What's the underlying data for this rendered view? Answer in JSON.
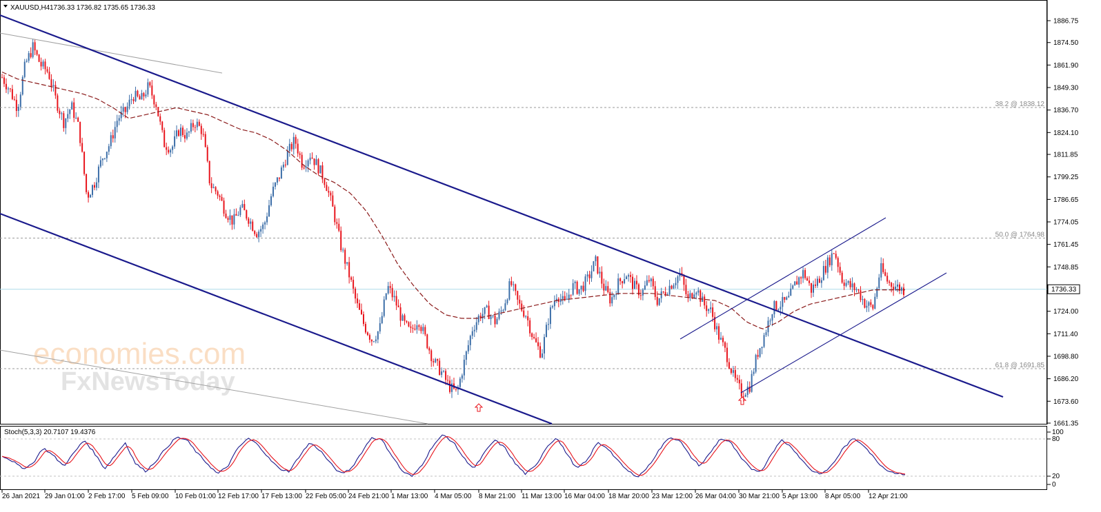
{
  "header": {
    "symbol_text": "XAUUSD,H4",
    "ohlc_text": "1736.33 1736.82 1735.65 1736.33"
  },
  "price_axis": {
    "ticks": [
      "1886.75",
      "1874.50",
      "1861.90",
      "1849.30",
      "1836.70",
      "1824.10",
      "1811.85",
      "1799.25",
      "1786.65",
      "1774.05",
      "1761.45",
      "1748.85",
      "1736.25",
      "1724.00",
      "1711.40",
      "1698.80",
      "1686.20",
      "1673.60",
      "1661.35"
    ],
    "current_price": "1736.33"
  },
  "fib_levels": [
    {
      "label": "38.2 @ 1838.12",
      "price": 1838.12
    },
    {
      "label": "50.0 @ 1764.98",
      "price": 1764.98
    },
    {
      "label": "61.8 @ 1691.85",
      "price": 1691.85
    }
  ],
  "stoch": {
    "title": "Stoch(5,3,3) 20.7107 19.4376",
    "ticks": [
      "100",
      "80",
      "20",
      "0"
    ]
  },
  "time_axis": {
    "labels": [
      "26 Jan 2021",
      "29 Jan 01:00",
      "2 Feb 17:00",
      "5 Feb 09:00",
      "10 Feb 01:00",
      "12 Feb 17:00",
      "17 Feb 13:00",
      "22 Feb 05:00",
      "24 Feb 21:00",
      "1 Mar 13:00",
      "4 Mar 05:00",
      "8 Mar 21:00",
      "11 Mar 13:00",
      "16 Mar 04:00",
      "18 Mar 20:00",
      "23 Mar 12:00",
      "26 Mar 04:00",
      "30 Mar 21:00",
      "5 Apr 13:00",
      "8 Apr 05:00",
      "12 Apr 21:00"
    ]
  },
  "watermark": {
    "line1": "economies.com",
    "line2": "FxNewsToday"
  },
  "colors": {
    "bull": "#3c6ea8",
    "bear": "#e8141c",
    "ma": "#8b1a1a",
    "channel": "#1a1a8c",
    "stoch_main": "#1a1a8c",
    "stoch_signal": "#e8141c",
    "current_line": "#aedbe8"
  },
  "chart_data": {
    "type": "candlestick",
    "symbol": "XAUUSD",
    "timeframe": "H4",
    "ylim": [
      1661.35,
      1893
    ],
    "path": [
      1855,
      1848,
      1838,
      1862,
      1872,
      1862,
      1858,
      1842,
      1830,
      1839,
      1826,
      1788,
      1796,
      1810,
      1818,
      1832,
      1836,
      1845,
      1842,
      1850,
      1840,
      1818,
      1815,
      1826,
      1822,
      1830,
      1825,
      1795,
      1790,
      1780,
      1774,
      1782,
      1776,
      1768,
      1772,
      1790,
      1800,
      1812,
      1820,
      1806,
      1812,
      1805,
      1796,
      1780,
      1760,
      1745,
      1728,
      1716,
      1708,
      1714,
      1738,
      1730,
      1718,
      1712,
      1720,
      1708,
      1696,
      1690,
      1682,
      1678,
      1696,
      1714,
      1722,
      1724,
      1718,
      1726,
      1740,
      1728,
      1722,
      1708,
      1700,
      1722,
      1734,
      1728,
      1738,
      1736,
      1742,
      1752,
      1738,
      1730,
      1740,
      1745,
      1738,
      1734,
      1742,
      1730,
      1735,
      1740,
      1745,
      1730,
      1738,
      1728,
      1724,
      1710,
      1700,
      1686,
      1678,
      1682,
      1700,
      1712,
      1726,
      1728,
      1730,
      1740,
      1746,
      1736,
      1742,
      1750,
      1758,
      1742,
      1738,
      1736,
      1728,
      1726,
      1748,
      1740,
      1738,
      1736
    ],
    "ma_path": [
      1858,
      1854,
      1852,
      1850,
      1848,
      1846,
      1843,
      1838,
      1832,
      1834,
      1836,
      1838,
      1836,
      1834,
      1830,
      1826,
      1824,
      1820,
      1814,
      1806,
      1800,
      1796,
      1790,
      1780,
      1766,
      1750,
      1738,
      1728,
      1722,
      1720,
      1720,
      1722,
      1724,
      1726,
      1728,
      1730,
      1731,
      1732,
      1733,
      1734,
      1734,
      1734,
      1733,
      1732,
      1731,
      1730,
      1726,
      1718,
      1714,
      1718,
      1724,
      1728,
      1730,
      1732,
      1734,
      1736,
      1736,
      1736
    ],
    "stoch_path": [
      55,
      45,
      30,
      40,
      70,
      55,
      35,
      60,
      85,
      60,
      30,
      55,
      80,
      40,
      25,
      45,
      70,
      90,
      85,
      60,
      40,
      20,
      35,
      70,
      88,
      75,
      50,
      30,
      25,
      55,
      80,
      65,
      40,
      20,
      30,
      60,
      90,
      85,
      55,
      25,
      15,
      40,
      75,
      95,
      80,
      50,
      30,
      60,
      85,
      70,
      40,
      20,
      35,
      70,
      90,
      60,
      30,
      45,
      80,
      70,
      45,
      25,
      15,
      35,
      65,
      90,
      85,
      55,
      35,
      60,
      88,
      80,
      50,
      30,
      25,
      60,
      85,
      70,
      45,
      25,
      20,
      40,
      70,
      88,
      75,
      50,
      30,
      22,
      20
    ]
  }
}
